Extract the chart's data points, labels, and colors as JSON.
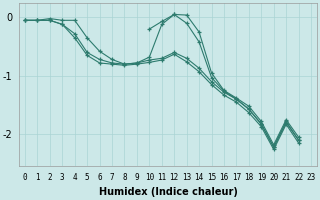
{
  "title": "",
  "xlabel": "Humidex (Indice chaleur)",
  "background_color": "#cce8e8",
  "grid_color": "#aad4d4",
  "line_color": "#2d7b6e",
  "marker": "+",
  "xlim": [
    -0.5,
    23.5
  ],
  "ylim": [
    -2.55,
    0.25
  ],
  "yticks": [
    0,
    -1,
    -2
  ],
  "xtick_labels": [
    "0",
    "1",
    "2",
    "3",
    "4",
    "5",
    "6",
    "7",
    "8",
    "9",
    "10",
    "11",
    "12",
    "13",
    "14",
    "15",
    "16",
    "17",
    "18",
    "19",
    "20",
    "21",
    "22",
    "23"
  ],
  "series": [
    [
      null,
      null,
      null,
      null,
      null,
      null,
      null,
      null,
      null,
      null,
      -0.2,
      -0.07,
      0.05,
      0.04,
      -0.25,
      -0.95,
      -1.25,
      -1.38,
      -1.52,
      -1.78,
      -2.18,
      -1.75,
      -2.05,
      null
    ],
    [
      -0.05,
      -0.05,
      -0.05,
      -0.12,
      -0.28,
      -0.6,
      -0.72,
      -0.78,
      -0.8,
      -0.78,
      -0.73,
      -0.7,
      -0.6,
      -0.7,
      -0.87,
      -1.1,
      -1.28,
      -1.4,
      -1.57,
      -1.83,
      -2.22,
      -1.8,
      -2.1,
      null
    ],
    [
      -0.05,
      -0.05,
      -0.05,
      -0.12,
      -0.35,
      -0.65,
      -0.78,
      -0.8,
      -0.82,
      -0.8,
      -0.77,
      -0.73,
      -0.63,
      -0.76,
      -0.93,
      -1.15,
      -1.33,
      -1.45,
      -1.63,
      -1.87,
      -2.26,
      -1.83,
      -2.15,
      null
    ],
    [
      -0.05,
      -0.05,
      -0.02,
      -0.05,
      -0.05,
      -0.35,
      -0.58,
      -0.72,
      -0.8,
      -0.78,
      -0.68,
      -0.12,
      0.05,
      -0.1,
      -0.42,
      -1.03,
      -1.26,
      -1.4,
      -1.57,
      -1.82,
      -2.22,
      -1.78,
      -2.1,
      null
    ]
  ],
  "figsize": [
    3.2,
    2.0
  ],
  "dpi": 100
}
